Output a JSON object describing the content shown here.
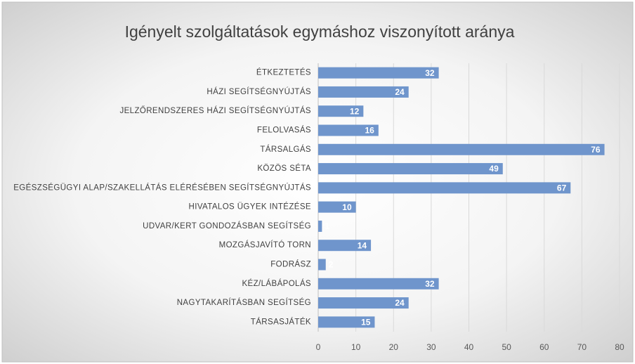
{
  "chart_data": {
    "type": "barh",
    "title": "Igényelt szolgáltatások egymáshoz viszonyított aránya",
    "categories": [
      "ÉTKEZTETÉS",
      "HÁZI SEGÍTSÉGNYÚJTÁS",
      "JELZŐRENDSZERES HÁZI SEGÍTSÉGNYÚJTÁS",
      "FELOLVASÁS",
      "TÁRSALGÁS",
      "KÖZÖS SÉTA",
      "EGÉSZSÉGÜGYI ALAP/SZAKELLÁTÁS ELÉRÉSÉBEN SEGÍTSÉGNYÚJTÁS",
      "HIVATALOS ÜGYEK INTÉZÉSE",
      "UDVAR/KERT GONDOZÁSBAN SEGÍTSÉG",
      "MOZGÁSJAVÍTÓ TORN",
      "FODRÁSZ",
      "KÉZ/LÁBÁPOLÁS",
      "NAGYTAKARÍTÁSBAN SEGÍTSÉG",
      "TÁRSASJÁTÉK"
    ],
    "values": [
      32,
      24,
      12,
      16,
      76,
      49,
      67,
      10,
      1,
      14,
      2,
      32,
      24,
      15
    ],
    "color": "#6f95cc",
    "xlim": [
      0,
      80
    ],
    "xticks": [
      0,
      10,
      20,
      30,
      40,
      50,
      60,
      70,
      80
    ],
    "grid": true
  }
}
